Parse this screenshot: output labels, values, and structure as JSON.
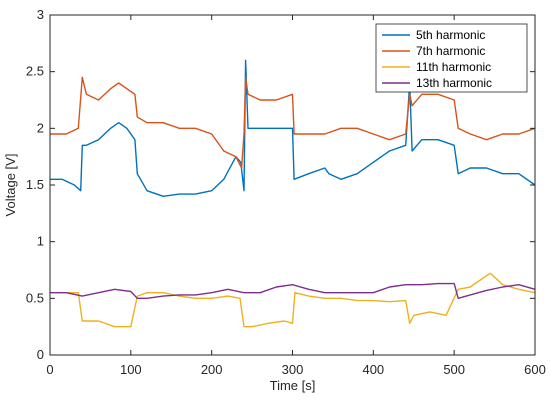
{
  "chart_data": {
    "type": "line",
    "title": "",
    "xlabel": "Time [s]",
    "ylabel": "Voltage [V]",
    "xlim": [
      0,
      600
    ],
    "ylim": [
      0,
      3
    ],
    "xticks": [
      0,
      100,
      200,
      300,
      400,
      500,
      600
    ],
    "yticks": [
      0,
      0.5,
      1,
      1.5,
      2,
      2.5,
      3
    ],
    "grid": false,
    "legend_position": "top-right",
    "series": [
      {
        "name": "5th harmonic",
        "color": "#0072BD",
        "x": [
          0,
          15,
          30,
          38,
          40,
          45,
          60,
          75,
          85,
          95,
          105,
          108,
          120,
          140,
          160,
          180,
          200,
          215,
          230,
          236,
          240,
          242,
          245,
          260,
          280,
          300,
          302,
          320,
          340,
          345,
          360,
          380,
          400,
          420,
          440,
          445,
          448,
          460,
          480,
          500,
          505,
          520,
          540,
          560,
          580,
          600
        ],
        "y": [
          1.55,
          1.55,
          1.5,
          1.45,
          1.85,
          1.85,
          1.9,
          2.0,
          2.05,
          2.0,
          1.9,
          1.6,
          1.45,
          1.4,
          1.42,
          1.42,
          1.45,
          1.55,
          1.75,
          1.7,
          1.45,
          2.6,
          2.0,
          2.0,
          2.0,
          2.0,
          1.55,
          1.6,
          1.65,
          1.6,
          1.55,
          1.6,
          1.7,
          1.8,
          1.85,
          2.4,
          1.8,
          1.9,
          1.9,
          1.85,
          1.6,
          1.65,
          1.65,
          1.6,
          1.6,
          1.5
        ]
      },
      {
        "name": "7th harmonic",
        "color": "#D95319",
        "x": [
          0,
          20,
          35,
          40,
          45,
          60,
          75,
          85,
          95,
          105,
          108,
          120,
          140,
          160,
          180,
          200,
          215,
          230,
          237,
          240,
          242,
          245,
          260,
          280,
          300,
          302,
          320,
          340,
          360,
          380,
          400,
          420,
          440,
          445,
          448,
          460,
          480,
          500,
          505,
          520,
          540,
          560,
          580,
          600
        ],
        "y": [
          1.95,
          1.95,
          2.0,
          2.45,
          2.3,
          2.25,
          2.35,
          2.4,
          2.35,
          2.3,
          2.1,
          2.05,
          2.05,
          2.0,
          2.0,
          1.95,
          1.8,
          1.75,
          1.65,
          1.95,
          2.45,
          2.3,
          2.25,
          2.25,
          2.3,
          1.95,
          1.95,
          1.95,
          2.0,
          2.0,
          1.95,
          1.9,
          1.95,
          2.3,
          2.2,
          2.3,
          2.3,
          2.25,
          2.0,
          1.95,
          1.9,
          1.95,
          1.95,
          2.0
        ]
      },
      {
        "name": "11th harmonic",
        "color": "#EDB120",
        "x": [
          0,
          20,
          35,
          40,
          60,
          80,
          100,
          108,
          120,
          140,
          160,
          180,
          200,
          220,
          235,
          240,
          250,
          270,
          290,
          300,
          303,
          320,
          340,
          360,
          380,
          400,
          420,
          440,
          445,
          450,
          470,
          490,
          505,
          520,
          540,
          545,
          560,
          580,
          600
        ],
        "y": [
          0.55,
          0.55,
          0.55,
          0.3,
          0.3,
          0.25,
          0.25,
          0.52,
          0.55,
          0.55,
          0.52,
          0.5,
          0.5,
          0.52,
          0.5,
          0.25,
          0.25,
          0.28,
          0.3,
          0.28,
          0.55,
          0.52,
          0.5,
          0.5,
          0.48,
          0.48,
          0.47,
          0.48,
          0.28,
          0.35,
          0.38,
          0.35,
          0.58,
          0.6,
          0.7,
          0.72,
          0.62,
          0.58,
          0.55
        ]
      },
      {
        "name": "13th harmonic",
        "color": "#7E2F8E",
        "x": [
          0,
          20,
          40,
          60,
          80,
          100,
          108,
          120,
          140,
          160,
          180,
          200,
          220,
          240,
          260,
          280,
          300,
          320,
          340,
          360,
          380,
          400,
          420,
          440,
          460,
          480,
          500,
          505,
          520,
          540,
          560,
          580,
          600
        ],
        "y": [
          0.55,
          0.55,
          0.52,
          0.55,
          0.58,
          0.56,
          0.5,
          0.5,
          0.52,
          0.53,
          0.53,
          0.55,
          0.58,
          0.55,
          0.55,
          0.6,
          0.62,
          0.58,
          0.55,
          0.55,
          0.55,
          0.55,
          0.6,
          0.62,
          0.62,
          0.63,
          0.63,
          0.5,
          0.53,
          0.57,
          0.6,
          0.62,
          0.58
        ]
      }
    ]
  }
}
